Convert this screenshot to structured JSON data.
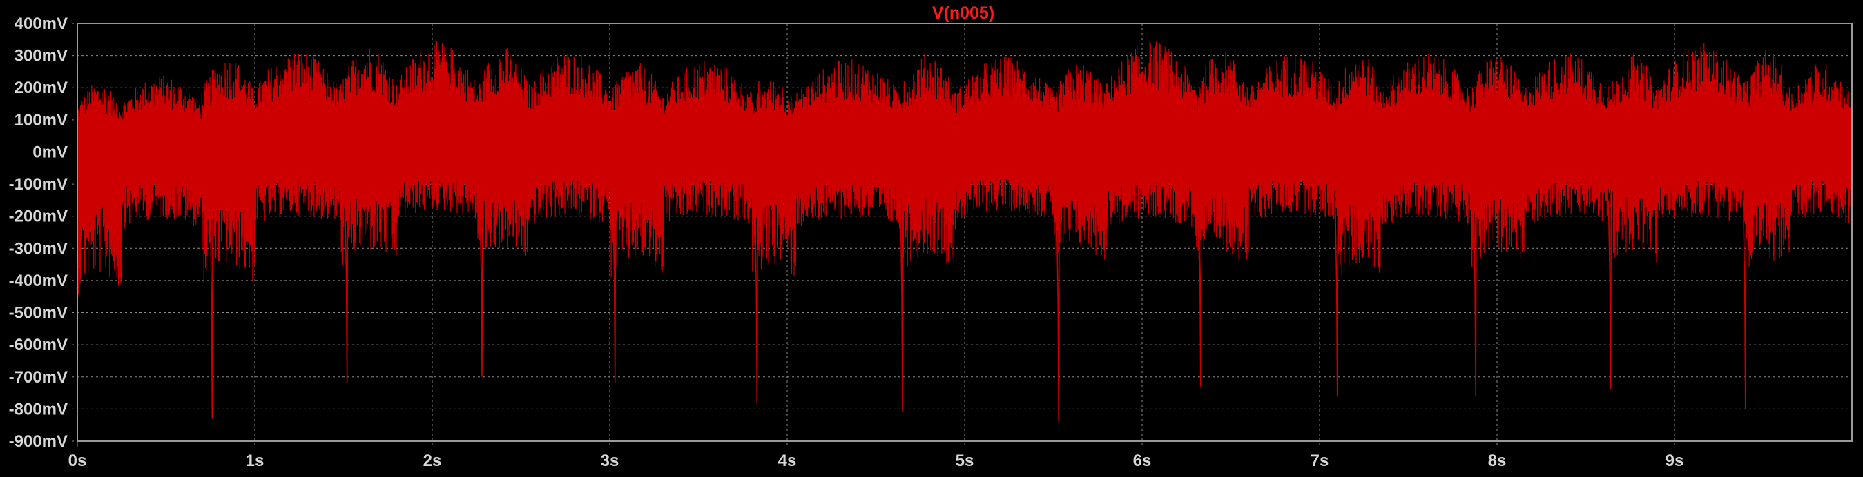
{
  "window": {
    "background": "#000000",
    "frame_color": "#9a9a9a",
    "grid_color": "#8a8a8a"
  },
  "chart_data": {
    "type": "line",
    "title": "V(n005)",
    "title_color": "#ff2020",
    "trace_color": "#cc0000",
    "xlabel": "",
    "ylabel": "",
    "x_unit": "s",
    "y_unit": "mV",
    "xlim": [
      0,
      10
    ],
    "ylim": [
      -900,
      400
    ],
    "grid": true,
    "legend": "none",
    "x_ticks": [
      0,
      1,
      2,
      3,
      4,
      5,
      6,
      7,
      8,
      9
    ],
    "x_tick_labels": [
      "0s",
      "1s",
      "2s",
      "3s",
      "4s",
      "5s",
      "6s",
      "7s",
      "8s",
      "9s"
    ],
    "y_ticks": [
      400,
      300,
      200,
      100,
      0,
      -100,
      -200,
      -300,
      -400,
      -500,
      -600,
      -700,
      -800,
      -900
    ],
    "y_tick_labels": [
      "400mV",
      "300mV",
      "200mV",
      "100mV",
      "0mV",
      "-100mV",
      "-200mV",
      "-300mV",
      "-400mV",
      "-500mV",
      "-600mV",
      "-700mV",
      "-800mV",
      "-900mV"
    ],
    "series": [
      {
        "name": "V(n005)",
        "envelope_segments": [
          {
            "x_start": 0.0,
            "x_end": 0.25,
            "y_min": -480,
            "y_max": 220
          },
          {
            "x_start": 0.25,
            "x_end": 0.7,
            "y_min": -260,
            "y_max": 240
          },
          {
            "x_start": 0.7,
            "x_end": 1.0,
            "y_min": -450,
            "y_max": 300
          },
          {
            "x_start": 1.0,
            "x_end": 1.48,
            "y_min": -250,
            "y_max": 320
          },
          {
            "x_start": 1.48,
            "x_end": 1.8,
            "y_min": -390,
            "y_max": 340
          },
          {
            "x_start": 1.8,
            "x_end": 2.25,
            "y_min": -230,
            "y_max": 350
          },
          {
            "x_start": 2.25,
            "x_end": 2.55,
            "y_min": -380,
            "y_max": 330
          },
          {
            "x_start": 2.55,
            "x_end": 3.0,
            "y_min": -250,
            "y_max": 320
          },
          {
            "x_start": 3.0,
            "x_end": 3.3,
            "y_min": -430,
            "y_max": 280
          },
          {
            "x_start": 3.3,
            "x_end": 3.8,
            "y_min": -250,
            "y_max": 290
          },
          {
            "x_start": 3.8,
            "x_end": 4.05,
            "y_min": -440,
            "y_max": 230
          },
          {
            "x_start": 4.05,
            "x_end": 4.65,
            "y_min": -260,
            "y_max": 290
          },
          {
            "x_start": 4.65,
            "x_end": 4.95,
            "y_min": -400,
            "y_max": 310
          },
          {
            "x_start": 4.95,
            "x_end": 5.5,
            "y_min": -230,
            "y_max": 300
          },
          {
            "x_start": 5.5,
            "x_end": 5.8,
            "y_min": -380,
            "y_max": 280
          },
          {
            "x_start": 5.8,
            "x_end": 6.3,
            "y_min": -260,
            "y_max": 350
          },
          {
            "x_start": 6.3,
            "x_end": 6.6,
            "y_min": -390,
            "y_max": 320
          },
          {
            "x_start": 6.6,
            "x_end": 7.1,
            "y_min": -240,
            "y_max": 310
          },
          {
            "x_start": 7.1,
            "x_end": 7.35,
            "y_min": -440,
            "y_max": 320
          },
          {
            "x_start": 7.35,
            "x_end": 7.85,
            "y_min": -250,
            "y_max": 310
          },
          {
            "x_start": 7.85,
            "x_end": 8.15,
            "y_min": -390,
            "y_max": 310
          },
          {
            "x_start": 8.15,
            "x_end": 8.65,
            "y_min": -250,
            "y_max": 310
          },
          {
            "x_start": 8.65,
            "x_end": 8.9,
            "y_min": -380,
            "y_max": 310
          },
          {
            "x_start": 8.9,
            "x_end": 9.4,
            "y_min": -250,
            "y_max": 340
          },
          {
            "x_start": 9.4,
            "x_end": 9.65,
            "y_min": -420,
            "y_max": 320
          },
          {
            "x_start": 9.65,
            "x_end": 10.0,
            "y_min": -250,
            "y_max": 280
          }
        ],
        "spikes": [
          {
            "x": 0.76,
            "y": -830
          },
          {
            "x": 1.52,
            "y": -720
          },
          {
            "x": 2.28,
            "y": -700
          },
          {
            "x": 3.03,
            "y": -720
          },
          {
            "x": 3.83,
            "y": -780
          },
          {
            "x": 4.65,
            "y": -810
          },
          {
            "x": 5.53,
            "y": -840
          },
          {
            "x": 6.33,
            "y": -730
          },
          {
            "x": 7.1,
            "y": -760
          },
          {
            "x": 7.88,
            "y": -760
          },
          {
            "x": 8.64,
            "y": -740
          },
          {
            "x": 9.4,
            "y": -800
          }
        ]
      }
    ]
  }
}
